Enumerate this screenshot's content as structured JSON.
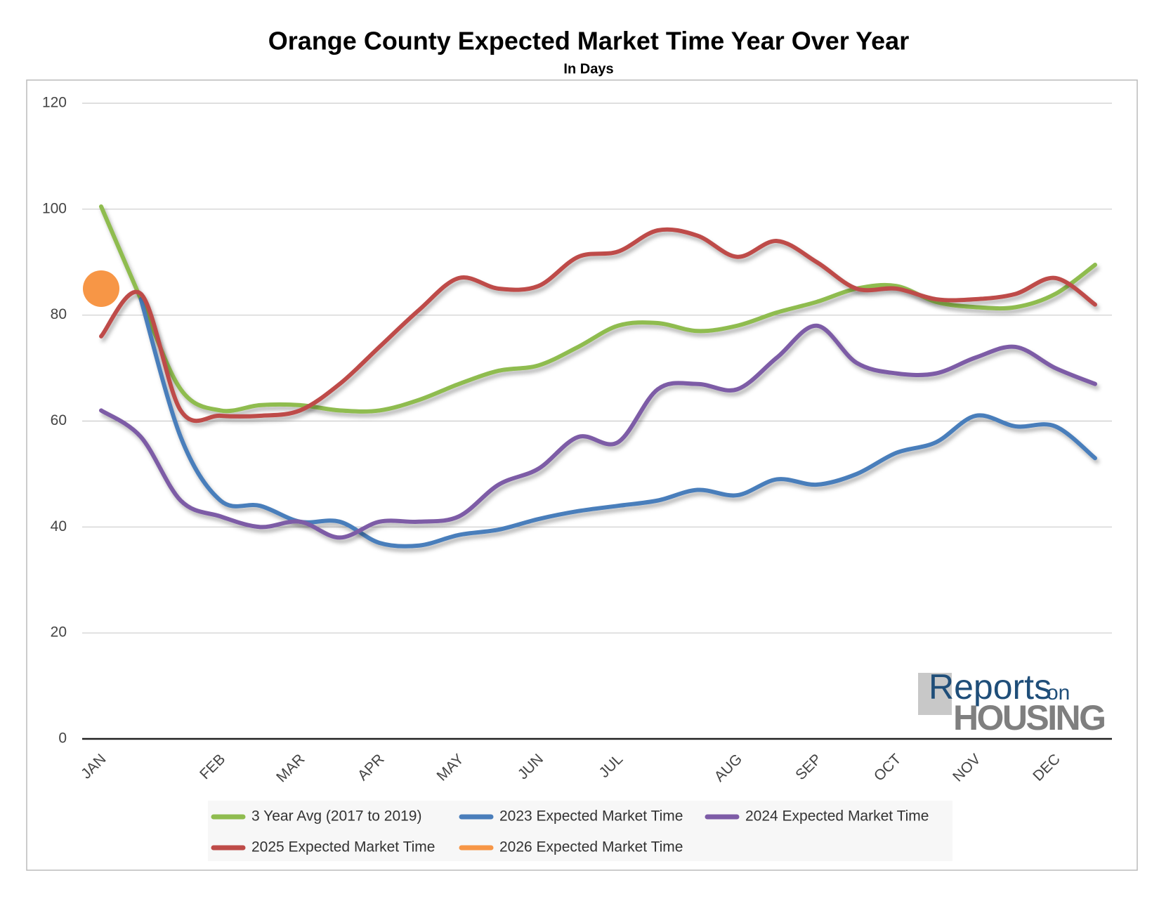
{
  "chart_data": {
    "type": "line",
    "title": "Orange County Expected Market Time Year Over Year",
    "subtitle": "In Days",
    "categories": [
      "JAN",
      null,
      null,
      "FEB",
      null,
      "MAR",
      null,
      "APR",
      null,
      "MAY",
      null,
      "JUN",
      null,
      "JUL",
      null,
      null,
      "AUG",
      null,
      "SEP",
      null,
      "OCT",
      null,
      "NOV",
      null,
      "DEC",
      null
    ],
    "series": [
      {
        "name": "3 Year Avg (2017 to 2019)",
        "color": "#8fbc4f",
        "values": [
          100.5,
          83,
          66,
          62,
          63,
          63,
          62,
          62,
          64,
          67,
          69.5,
          70.5,
          74,
          78,
          78.5,
          77,
          78,
          80.5,
          82.5,
          85,
          85.5,
          82.5,
          81.5,
          81.5,
          84,
          89.5
        ]
      },
      {
        "name": "2023 Expected Market Time",
        "color": "#4a7ebb",
        "values": [
          null,
          83,
          57,
          45,
          44,
          41,
          41,
          37,
          36.5,
          38.5,
          39.5,
          41.5,
          43,
          44,
          45,
          47,
          46,
          49,
          48,
          50,
          54,
          56,
          61,
          59,
          59,
          53
        ]
      },
      {
        "name": "2024 Expected Market Time",
        "color": "#7d5ba6",
        "values": [
          62,
          57,
          45,
          42,
          40,
          41,
          38,
          41,
          41,
          42,
          48,
          51,
          57,
          56,
          66,
          67,
          66,
          72,
          78,
          71,
          69,
          69,
          72,
          74,
          70,
          67
        ]
      },
      {
        "name": "2025 Expected Market Time",
        "color": "#be4b48",
        "values": [
          76,
          84,
          62,
          61,
          61,
          62,
          67,
          74,
          81,
          87,
          85,
          85.5,
          91,
          92,
          96,
          95,
          91,
          94,
          90,
          85,
          85,
          83,
          83,
          84,
          87,
          82
        ]
      },
      {
        "name": "2026 Expected Market Time",
        "color": "#f79646",
        "values": [
          85,
          null,
          null,
          null,
          null,
          null,
          null,
          null,
          null,
          null,
          null,
          null,
          null,
          null,
          null,
          null,
          null,
          null,
          null,
          null,
          null,
          null,
          null,
          null,
          null,
          null
        ]
      }
    ],
    "ylim": [
      0,
      120
    ],
    "yticks": [
      0,
      20,
      40,
      60,
      80,
      100,
      120
    ],
    "grid": true,
    "logo": {
      "line1": "Reports",
      "small": "on",
      "line2": "HOUSING"
    }
  }
}
